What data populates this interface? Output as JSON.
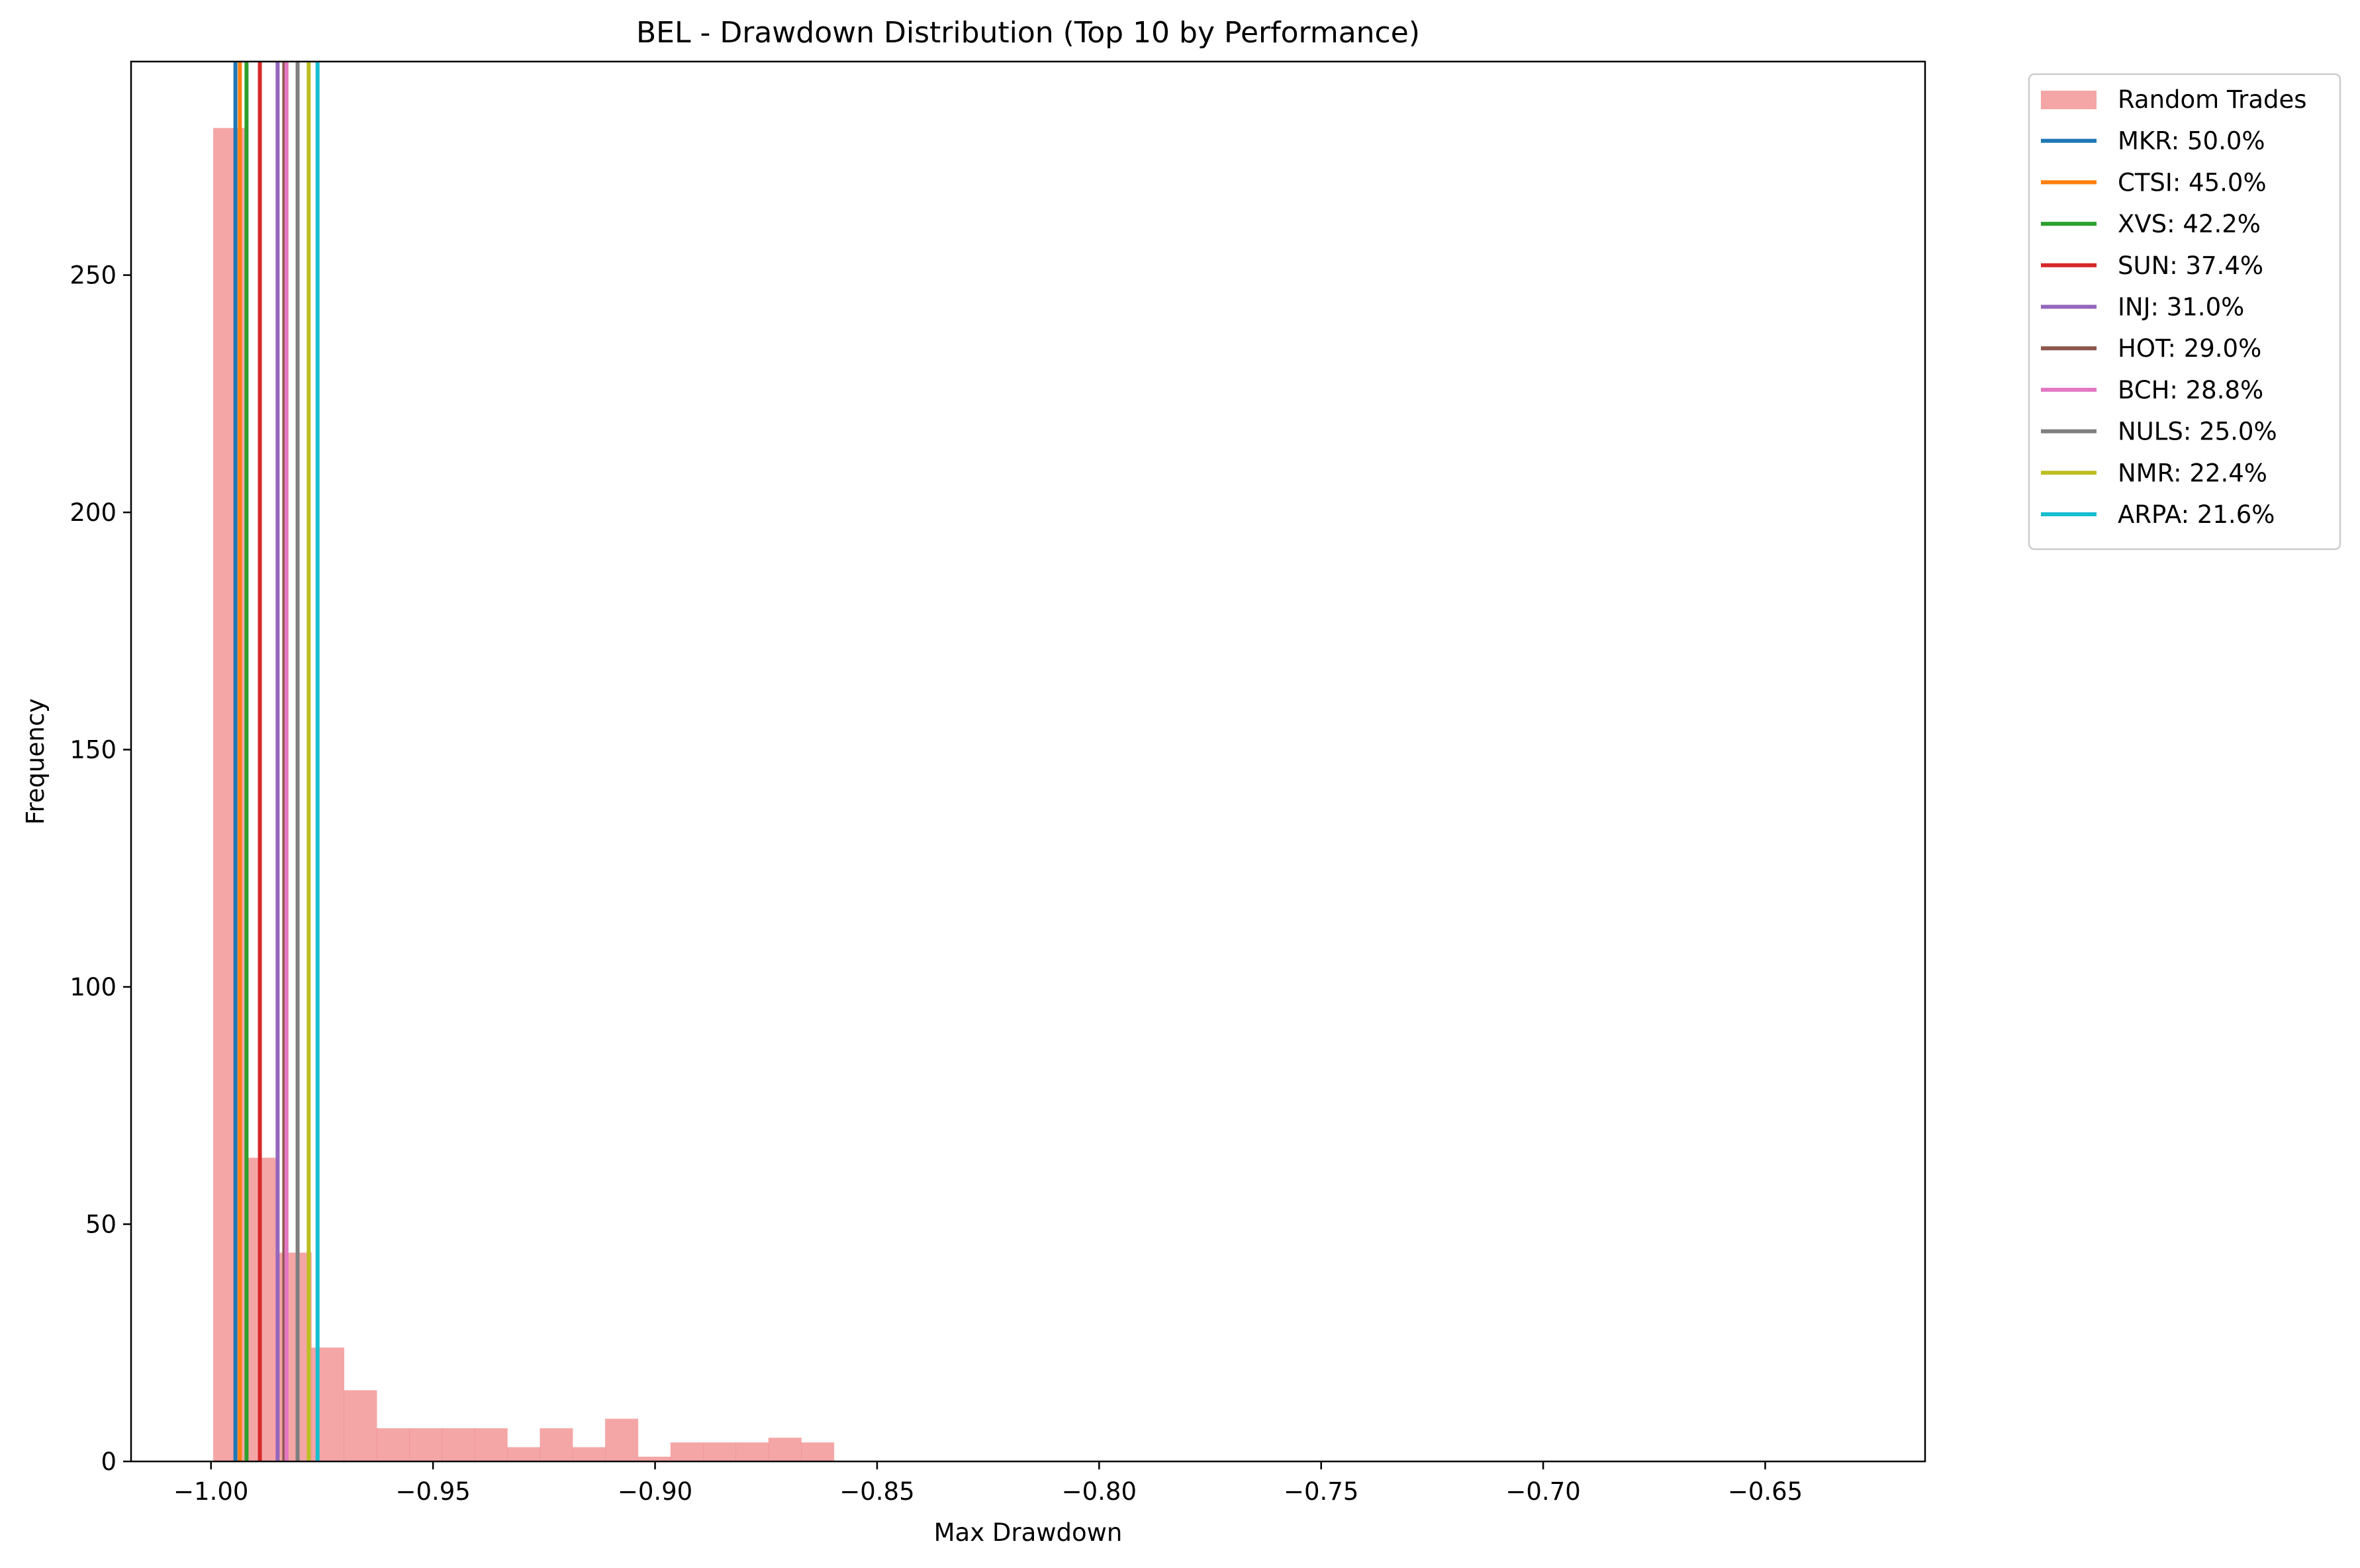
{
  "chart_data": {
    "type": "histogram",
    "title": "BEL - Drawdown Distribution (Top 10 by Performance)",
    "xlabel": "Max Drawdown",
    "ylabel": "Frequency",
    "xlim": [
      -1.018,
      -0.614
    ],
    "ylim": [
      0,
      295
    ],
    "xticks": [
      -1.0,
      -0.95,
      -0.9,
      -0.85,
      -0.8,
      -0.75,
      -0.7,
      -0.65
    ],
    "xtick_labels": [
      "−1.00",
      "−0.95",
      "−0.90",
      "−0.85",
      "−0.80",
      "−0.75",
      "−0.70",
      "−0.65"
    ],
    "yticks": [
      0,
      50,
      100,
      150,
      200,
      250
    ],
    "ytick_labels": [
      "0",
      "50",
      "100",
      "150",
      "200",
      "250"
    ],
    "grid": false,
    "legend_position": "outside upper right",
    "histogram": {
      "name": "Random Trades",
      "color": "#f08080",
      "opacity": 0.7,
      "bin_start": -0.9995,
      "bin_width": 0.007355,
      "counts": [
        281,
        64,
        44,
        24,
        15,
        7,
        7,
        7,
        7,
        3,
        7,
        3,
        9,
        1,
        4,
        4,
        4,
        5,
        4,
        0,
        0,
        0,
        0,
        0,
        0,
        0,
        0,
        0,
        0,
        0,
        0,
        0,
        0,
        0,
        0,
        0,
        0,
        0,
        0,
        0,
        0,
        0,
        0,
        0,
        0,
        0,
        0,
        0,
        0,
        0
      ]
    },
    "series": [
      {
        "name": "MKR",
        "value": -0.9945,
        "color": "#1f77b4",
        "label": "MKR: 50.0%"
      },
      {
        "name": "CTSI",
        "value": -0.9935,
        "color": "#ff7f0e",
        "label": "CTSI: 45.0%"
      },
      {
        "name": "XVS",
        "value": -0.992,
        "color": "#2ca02c",
        "label": "XVS: 42.2%"
      },
      {
        "name": "SUN",
        "value": -0.989,
        "color": "#d62728",
        "label": "SUN: 37.4%"
      },
      {
        "name": "INJ",
        "value": -0.985,
        "color": "#9467bd",
        "label": "INJ: 31.0%"
      },
      {
        "name": "HOT",
        "value": -0.9835,
        "color": "#8c564b",
        "label": "HOT: 29.0%"
      },
      {
        "name": "BCH",
        "value": -0.983,
        "color": "#e377c2",
        "label": "BCH: 28.8%"
      },
      {
        "name": "NULS",
        "value": -0.9805,
        "color": "#7f7f7f",
        "label": "NULS: 25.0%"
      },
      {
        "name": "NMR",
        "value": -0.978,
        "color": "#bcbd22",
        "label": "NMR: 22.4%"
      },
      {
        "name": "ARPA",
        "value": -0.976,
        "color": "#17becf",
        "label": "ARPA: 21.6%"
      }
    ]
  }
}
